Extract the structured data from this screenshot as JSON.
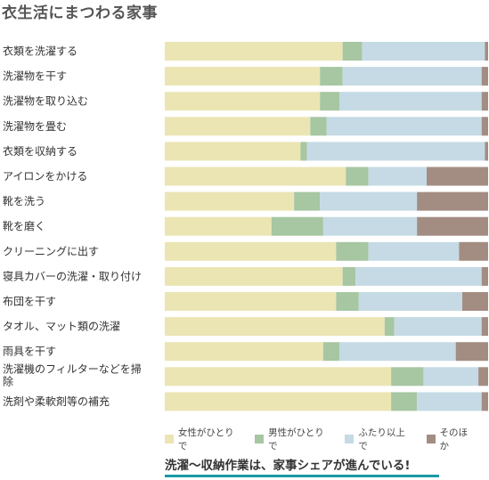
{
  "chart_data": {
    "type": "bar",
    "orientation": "horizontal",
    "stacked": true,
    "title": "衣生活にまつわる家事",
    "categories": [
      "衣類を洗濯する",
      "洗濯物を干す",
      "洗濯物を取り込む",
      "洗濯物を畳む",
      "衣類を収納する",
      "アイロンをかける",
      "靴を洗う",
      "靴を磨く",
      "クリーニングに出す",
      "寝具カバーの洗濯・取り付け",
      "布団を干す",
      "タオル、マット類の洗濯",
      "雨具を干す",
      "洗濯機のフィルターなどを掃除",
      "洗剤や柔軟剤等の補充"
    ],
    "series": [
      {
        "name": "女性がひとりで",
        "color": "#ebe5b4",
        "values": [
          55,
          48,
          48,
          45,
          42,
          56,
          40,
          33,
          53,
          55,
          53,
          68,
          49,
          70,
          70
        ]
      },
      {
        "name": "男性がひとりで",
        "color": "#a7c6a2",
        "values": [
          6,
          7,
          6,
          5,
          2,
          7,
          8,
          16,
          10,
          4,
          7,
          3,
          5,
          10,
          8
        ]
      },
      {
        "name": "ふたり以上で",
        "color": "#c5dae4",
        "values": [
          38,
          43,
          44,
          48,
          55,
          18,
          30,
          29,
          28,
          39,
          32,
          27,
          36,
          17,
          20
        ]
      },
      {
        "name": "そのほか",
        "color": "#a38d82",
        "values": [
          1,
          2,
          2,
          2,
          1,
          19,
          22,
          22,
          9,
          2,
          8,
          2,
          10,
          3,
          2
        ]
      }
    ],
    "xlim": [
      0,
      100
    ],
    "grid": false,
    "legend_position": "bottom"
  },
  "caption": "洗濯～収納作業は、家事シェアが進んでいる!",
  "caption_underline_color": "#1a9aa6"
}
